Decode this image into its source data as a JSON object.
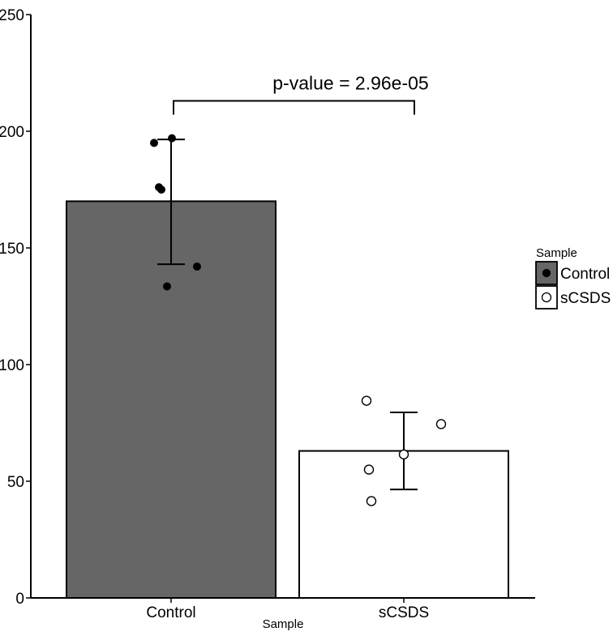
{
  "chart_data": {
    "type": "bar",
    "title": "",
    "xlabel": "Sample",
    "ylabel": "",
    "ylim": [
      0,
      250
    ],
    "yticks": [
      0,
      50,
      100,
      150,
      200,
      250
    ],
    "categories": [
      "Control",
      "sCSDS"
    ],
    "values": [
      170,
      63
    ],
    "error_low": [
      143,
      46.5
    ],
    "error_high": [
      196.5,
      79.5
    ],
    "points": [
      {
        "category": "Control",
        "values": [
          195,
          197,
          176,
          175,
          142,
          133.5
        ]
      },
      {
        "category": "sCSDS",
        "values": [
          84.5,
          74.5,
          61.5,
          55,
          41.5
        ]
      }
    ],
    "bar_colors": [
      "#666666",
      "#ffffff"
    ],
    "point_styles": [
      "filled",
      "open"
    ],
    "annotation": {
      "text": "p-value = 2.96e-05",
      "between": [
        "Control",
        "sCSDS"
      ],
      "bracket_y": 213
    },
    "legend": {
      "title": "Sample",
      "position": "right",
      "items": [
        {
          "label": "Control",
          "color": "#666666",
          "marker": "filled"
        },
        {
          "label": "sCSDS",
          "color": "#ffffff",
          "marker": "open"
        }
      ]
    },
    "grid": false
  }
}
